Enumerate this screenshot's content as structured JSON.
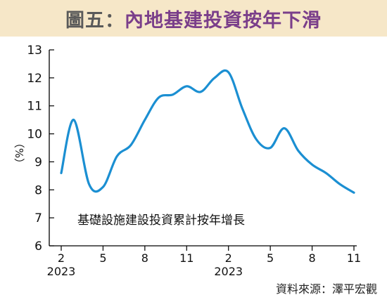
{
  "header": {
    "label": "圖五：",
    "title": "內地基建投資按年下滑"
  },
  "source": "資料來源：澤平宏觀",
  "chart_data": {
    "type": "line",
    "title": "內地基建投資按年下滑",
    "ylabel": "（%）",
    "xlabel": "",
    "ylim": [
      6,
      13
    ],
    "yticks": [
      6,
      7,
      8,
      9,
      10,
      11,
      12,
      13
    ],
    "xticks": [
      {
        "x": 0,
        "label": "2",
        "year": "2023"
      },
      {
        "x": 3,
        "label": "5",
        "year": ""
      },
      {
        "x": 6,
        "label": "8",
        "year": ""
      },
      {
        "x": 9,
        "label": "11",
        "year": ""
      },
      {
        "x": 12,
        "label": "2",
        "year": "2023"
      },
      {
        "x": 15,
        "label": "5",
        "year": ""
      },
      {
        "x": 18,
        "label": "8",
        "year": ""
      },
      {
        "x": 21,
        "label": "11",
        "year": ""
      }
    ],
    "series": [
      {
        "name": "基礎設施建設投資累計按年增長",
        "color": "#1b8fd2",
        "points": [
          [
            0,
            8.6
          ],
          [
            0.9,
            10.5
          ],
          [
            2,
            8.2
          ],
          [
            3,
            8.1
          ],
          [
            4,
            9.2
          ],
          [
            5,
            9.6
          ],
          [
            6,
            10.5
          ],
          [
            7,
            11.3
          ],
          [
            8,
            11.4
          ],
          [
            9,
            11.7
          ],
          [
            10,
            11.5
          ],
          [
            11,
            12.0
          ],
          [
            12,
            12.2
          ],
          [
            13,
            10.9
          ],
          [
            14,
            9.8
          ],
          [
            15,
            9.5
          ],
          [
            16,
            10.2
          ],
          [
            17,
            9.4
          ],
          [
            18,
            8.9
          ],
          [
            19,
            8.6
          ],
          [
            20,
            8.2
          ],
          [
            21,
            7.9
          ]
        ]
      }
    ],
    "grid": false,
    "legend": "inside-bottom-left"
  }
}
